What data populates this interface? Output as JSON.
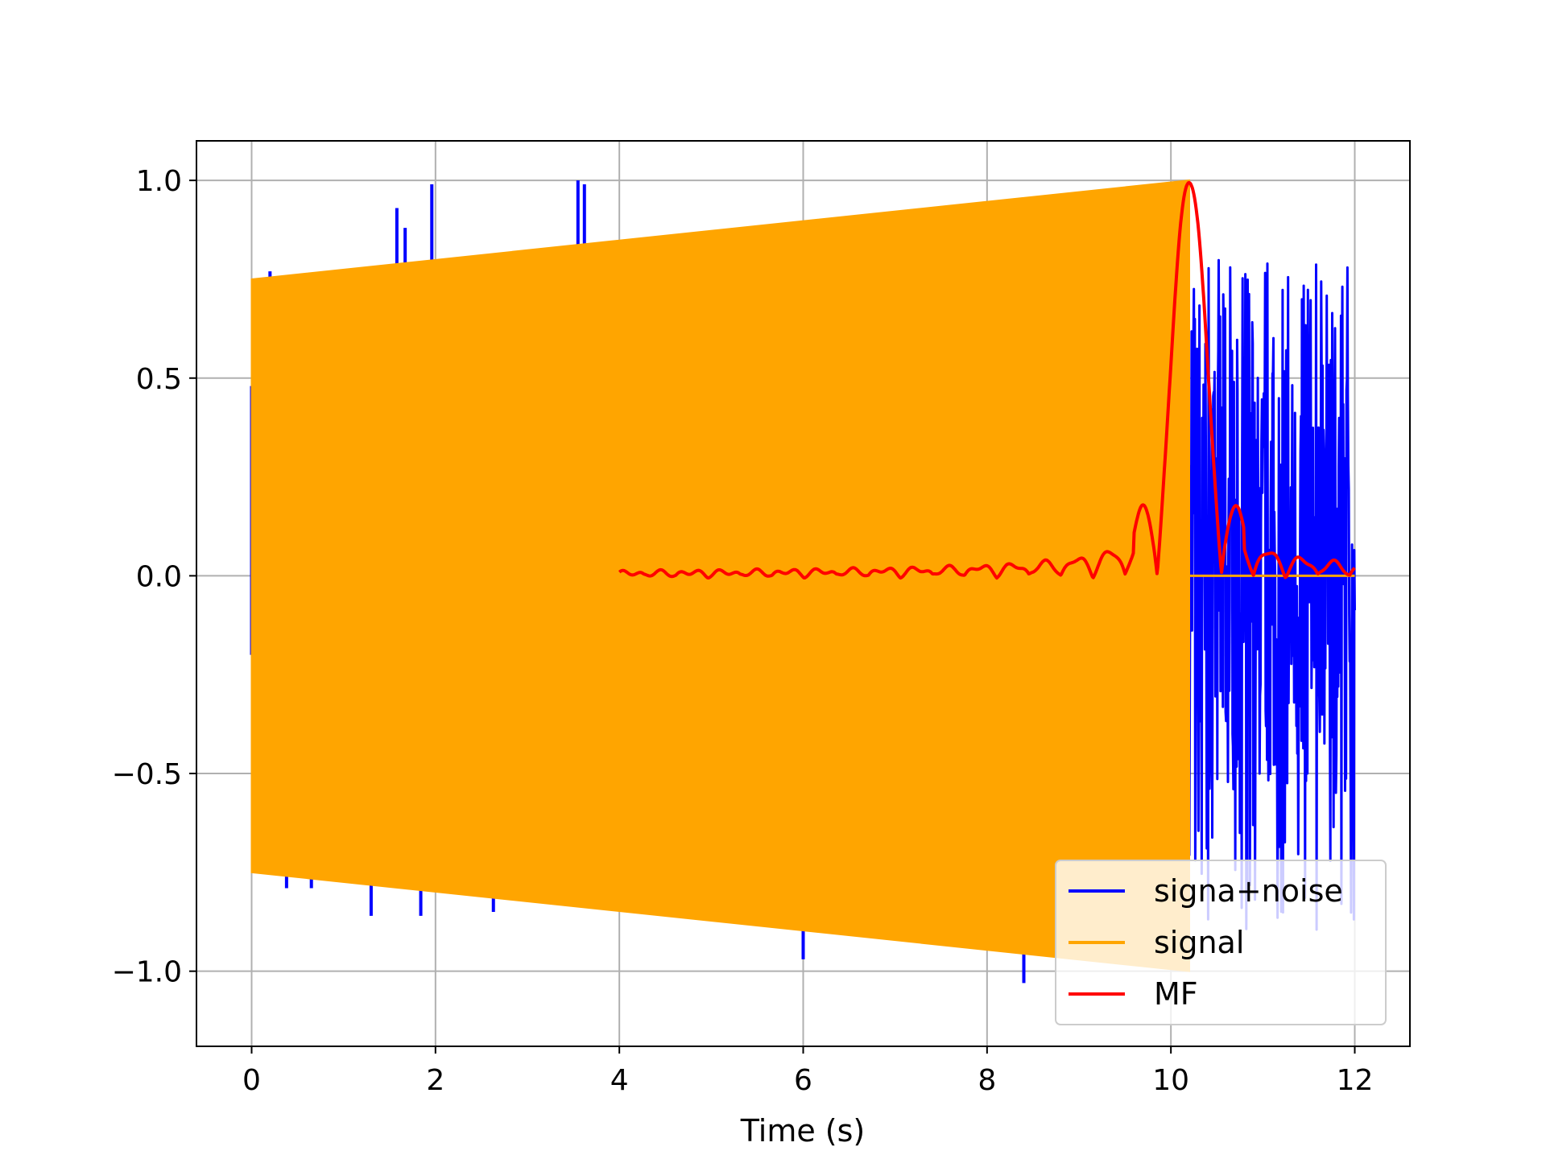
{
  "chart_data": {
    "type": "line",
    "title": "",
    "xlabel": "Time (s)",
    "ylabel": "",
    "xlim": [
      -0.6,
      12.6
    ],
    "ylim": [
      -1.19,
      1.1
    ],
    "x_ticks": [
      0,
      2,
      4,
      6,
      8,
      10,
      12
    ],
    "x_tick_labels": [
      "0",
      "2",
      "4",
      "6",
      "8",
      "10",
      "12"
    ],
    "y_ticks": [
      1.0,
      0.5,
      0.0,
      -0.5,
      -1.0
    ],
    "y_tick_labels": [
      "1.0",
      "0.5",
      "0.0",
      "−0.5",
      "−1.0"
    ],
    "grid": true,
    "legend_position": "lower-right",
    "series": [
      {
        "name": "signa+noise",
        "color": "#0000ff",
        "noise_spikes": [
          {
            "x": 0.0,
            "y": 0.48
          },
          {
            "x": 0.2,
            "y": 0.77
          },
          {
            "x": 0.38,
            "y": -0.79
          },
          {
            "x": 0.65,
            "y": -0.79
          },
          {
            "x": 1.3,
            "y": -0.86
          },
          {
            "x": 1.58,
            "y": 0.93
          },
          {
            "x": 1.67,
            "y": 0.88
          },
          {
            "x": 1.84,
            "y": -0.86
          },
          {
            "x": 1.96,
            "y": 0.99
          },
          {
            "x": 2.45,
            "y": 0.81
          },
          {
            "x": 2.63,
            "y": -0.85
          },
          {
            "x": 3.55,
            "y": 1.0
          },
          {
            "x": 3.62,
            "y": 0.99
          },
          {
            "x": 6.0,
            "y": -0.97
          },
          {
            "x": 8.4,
            "y": -1.03
          }
        ],
        "tail_start": 10.2,
        "tail_end": 12.0,
        "tail_range": [
          -0.9,
          0.8
        ]
      },
      {
        "name": "signal",
        "color": "#ffa500",
        "envelope": {
          "x": [
            0.0,
            10.2
          ],
          "amplitude": [
            0.75,
            1.0
          ]
        },
        "after_end_value": 0.0
      },
      {
        "name": "MF",
        "color": "#ff0000",
        "x_start": 4.0,
        "peak_x": 10.2,
        "peak_y": 1.0,
        "x_end": 12.0
      }
    ]
  }
}
